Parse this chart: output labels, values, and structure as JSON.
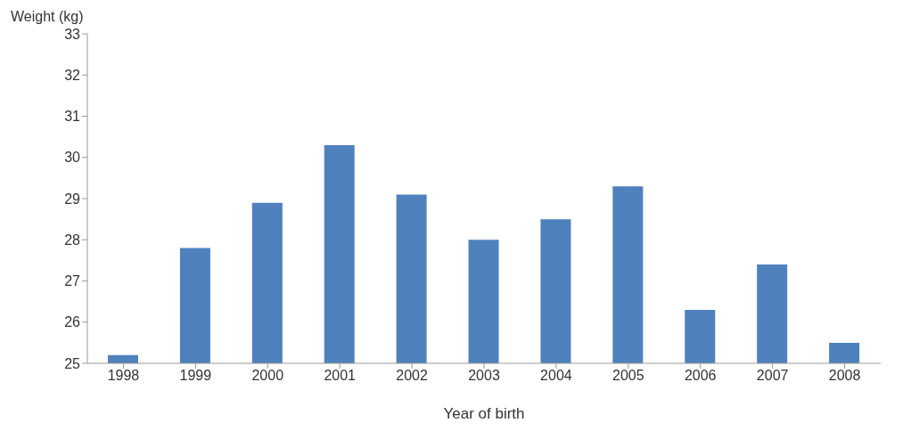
{
  "chart_data": {
    "type": "bar",
    "xlabel": "Year of birth",
    "ylabel": "Weight (kg)",
    "categories": [
      "1998",
      "1999",
      "2000",
      "2001",
      "2002",
      "2003",
      "2004",
      "2005",
      "2006",
      "2007",
      "2008"
    ],
    "values": [
      25.2,
      27.8,
      28.9,
      30.3,
      29.1,
      28.0,
      28.5,
      29.3,
      26.3,
      27.4,
      25.5
    ],
    "color": "#4f81bd",
    "ylim": [
      25,
      33
    ],
    "yticks": [
      25,
      26,
      27,
      28,
      29,
      30,
      31,
      32,
      33
    ],
    "grid": false,
    "legend": false
  }
}
